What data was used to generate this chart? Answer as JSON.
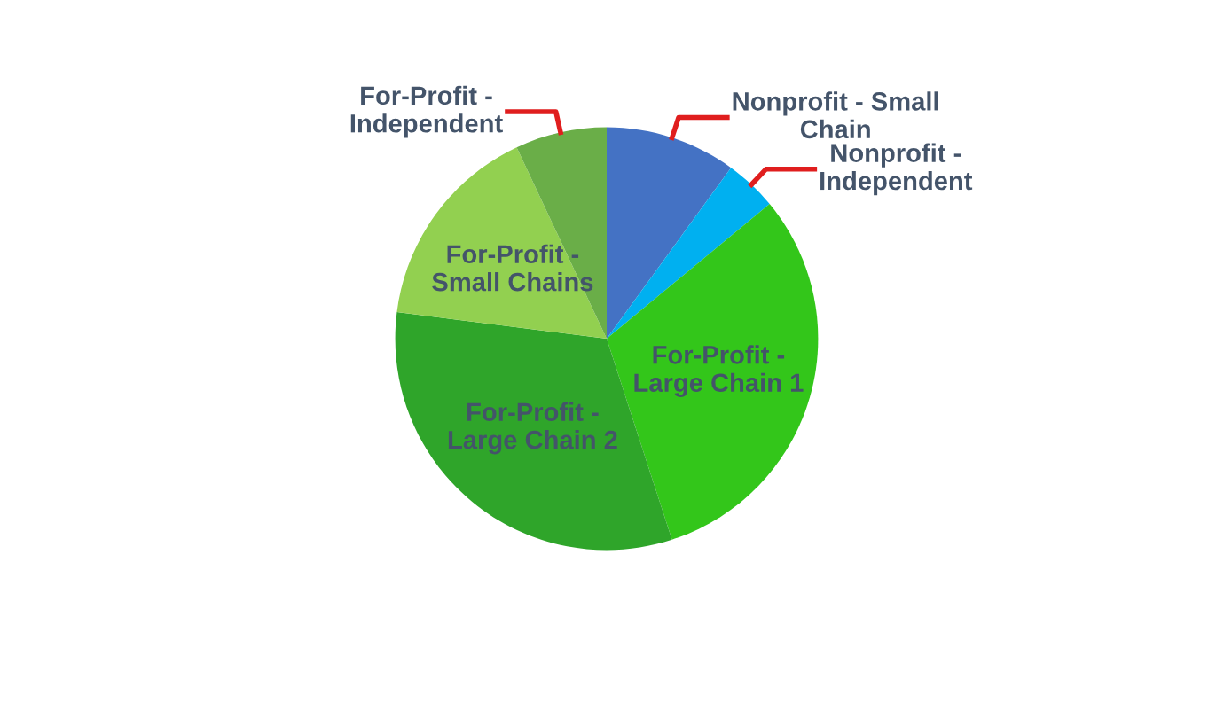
{
  "chart_data": {
    "type": "pie",
    "categories": [
      "Nonprofit - Small\nChain",
      "Nonprofit -\nIndependent",
      "For-Profit -\nLarge Chain 1",
      "For-Profit -\nLarge Chain 2",
      "For-Profit -\nSmall Chains",
      "For-Profit -\nIndependent"
    ],
    "values": [
      10,
      4,
      31,
      32,
      16,
      7
    ],
    "colors": [
      "#4472c4",
      "#00b0f0",
      "#33c61a",
      "#2fa52a",
      "#92d050",
      "#6aae48"
    ],
    "legend": false
  }
}
